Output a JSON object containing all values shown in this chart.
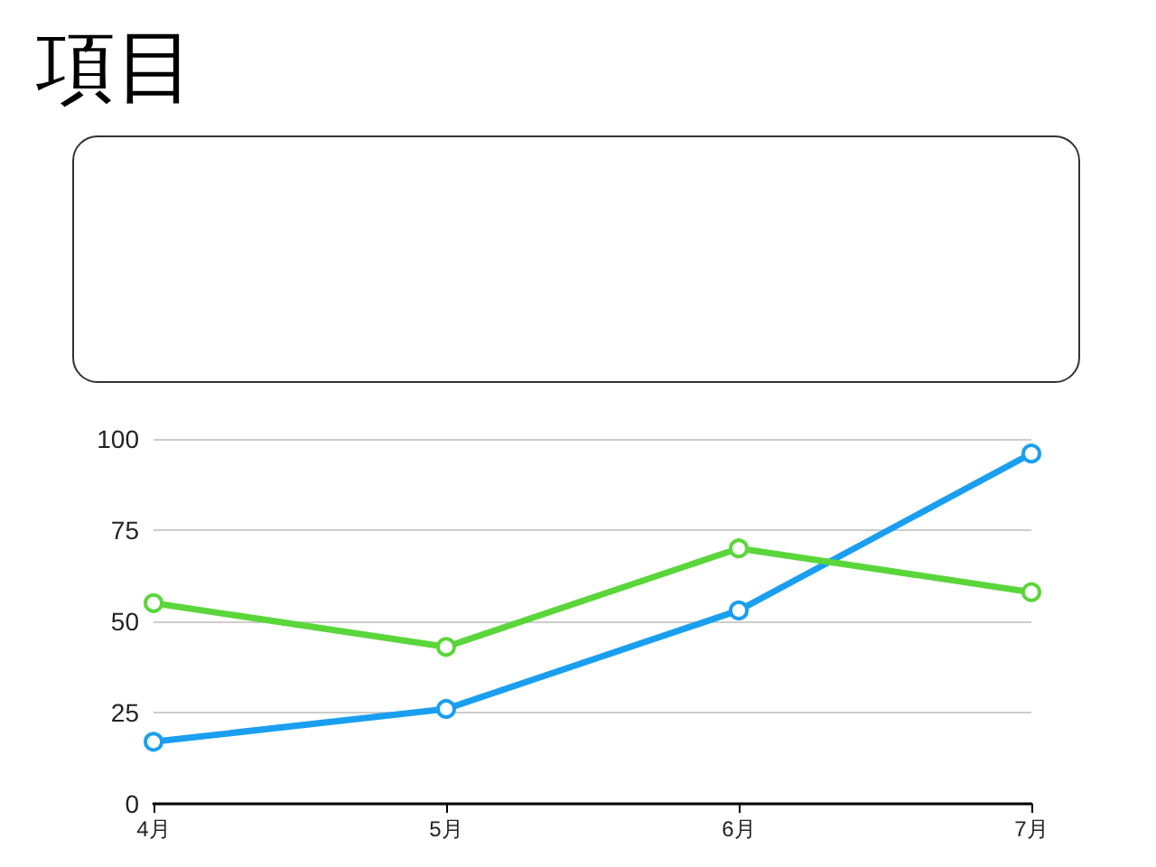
{
  "chart_data": {
    "type": "line",
    "title": "項目",
    "categories": [
      "4月",
      "5月",
      "6月",
      "7月"
    ],
    "series": [
      {
        "color": "#1a9ff0",
        "values": [
          17,
          26,
          53,
          96
        ]
      },
      {
        "color": "#5ad63a",
        "values": [
          55,
          43,
          70,
          58
        ]
      }
    ],
    "ylim": [
      0,
      100
    ],
    "yticks": [
      0,
      25,
      50,
      75,
      100
    ],
    "grid": "y",
    "marker": "circle",
    "line_style": "solid"
  }
}
